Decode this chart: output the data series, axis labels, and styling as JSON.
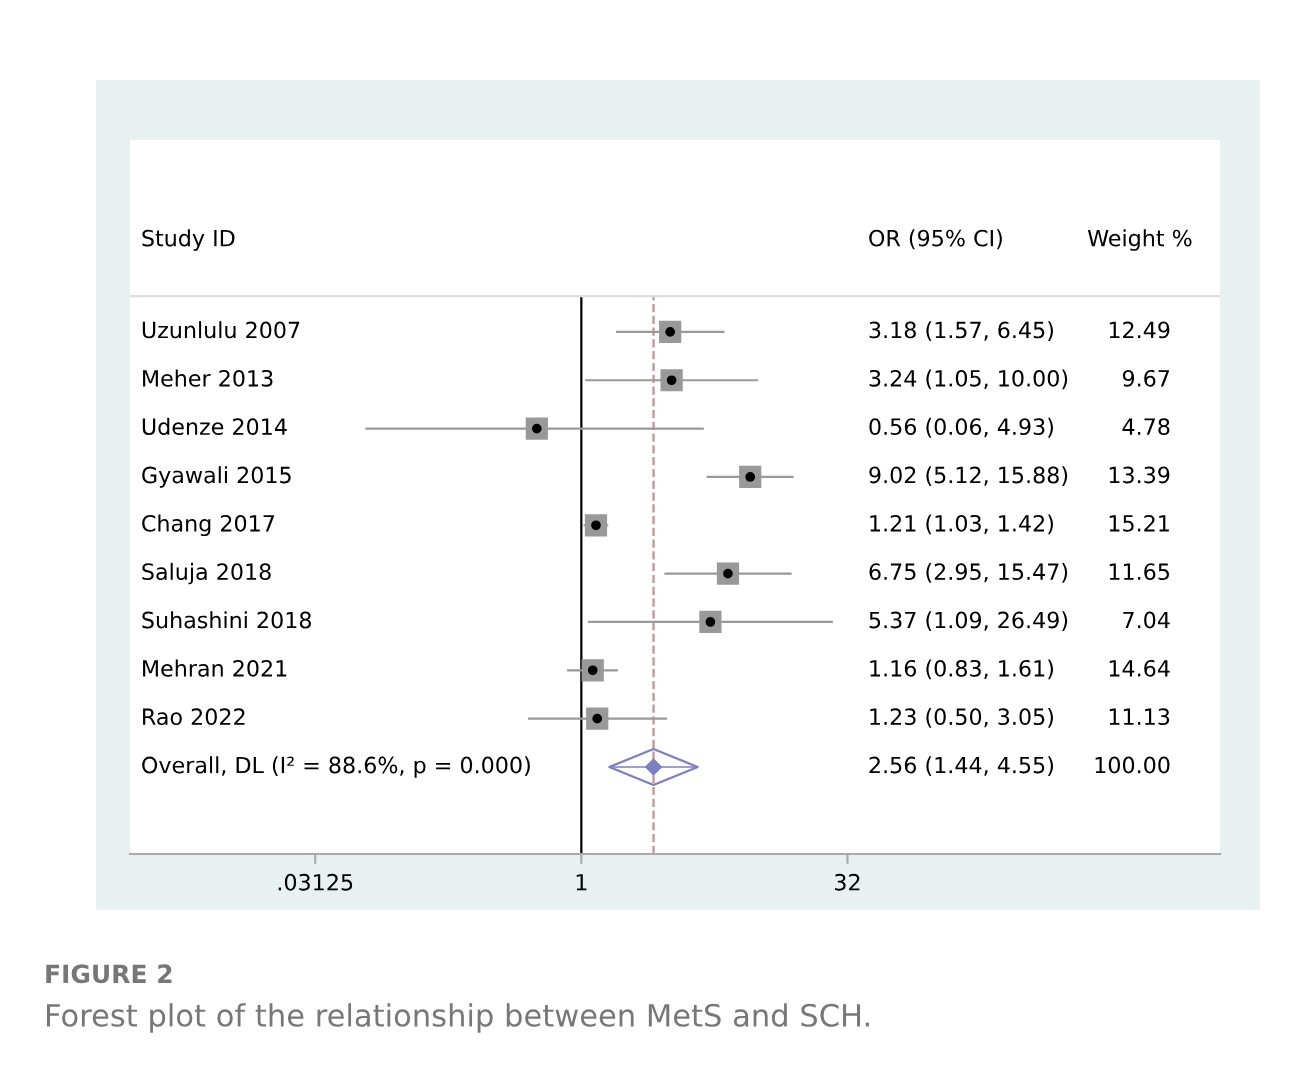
{
  "chart_data": {
    "type": "scatter",
    "orientation": "horizontal",
    "grid": false,
    "legend": false,
    "title": "FIGURE 2",
    "subtitle": "Forest plot of the relationship between MetS and SCH.",
    "ylabel": "Study ID",
    "categories": [
      "Uzunlulu 2007",
      "Meher 2013",
      "Udenze 2014",
      "Gyawali 2015",
      "Chang 2017",
      "Saluja 2018",
      "Suhashini 2018",
      "Mehran 2021",
      "Rao 2022",
      "Overall, DL (I² = 88.6%, p = 0.000)"
    ],
    "series": [
      {
        "marker": "square",
        "color": "#999999",
        "values": [
          3.18,
          3.24,
          0.56,
          9.02,
          1.21,
          6.75,
          5.37,
          1.16,
          1.23,
          null
        ],
        "errors": [
          [
            1.57,
            6.45
          ],
          [
            1.05,
            10.0
          ],
          [
            0.06,
            4.93
          ],
          [
            5.12,
            15.88
          ],
          [
            1.03,
            1.42
          ],
          [
            2.95,
            15.47
          ],
          [
            1.09,
            26.49
          ],
          [
            0.83,
            1.61
          ],
          [
            0.5,
            3.05
          ],
          null
        ]
      },
      {
        "marker": "diamond",
        "color": "#7b7fc4",
        "values": [
          null,
          null,
          null,
          null,
          null,
          null,
          null,
          null,
          null,
          2.56
        ],
        "errors": [
          null,
          null,
          null,
          null,
          null,
          null,
          null,
          null,
          null,
          [
            1.44,
            4.55
          ]
        ]
      }
    ],
    "log": "x",
    "xlim": [
      0.0028,
      4096
    ],
    "xticks": [
      {
        "value": 0.03125,
        "label": ".03125"
      },
      1,
      32
    ],
    "ref_lines": [
      {
        "axis": "x",
        "value": 1,
        "color": "#000000",
        "line_style": "solid"
      },
      {
        "axis": "x",
        "value": 2.56,
        "color": "#c89090",
        "line_style": "dashed"
      }
    ],
    "annotations": [
      "OR (95% CI)",
      "Weight %",
      "3.18 (1.57, 6.45)",
      "3.24 (1.05, 10.00)",
      "0.56 (0.06, 4.93)",
      "9.02 (5.12, 15.88)",
      "1.21 (1.03, 1.42)",
      "6.75 (2.95, 15.47)",
      "5.37 (1.09, 26.49)",
      "1.16 (0.83, 1.61)",
      "1.23 (0.50, 3.05)",
      "2.56 (1.44, 4.55)",
      "12.49",
      "9.67",
      "4.78",
      "13.39",
      "15.21",
      "11.65",
      "7.04",
      "14.64",
      "11.13",
      "100.00"
    ]
  }
}
